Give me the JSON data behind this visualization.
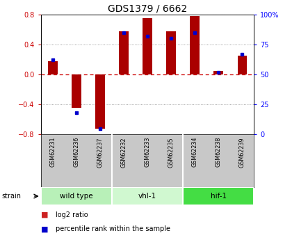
{
  "title": "GDS1379 / 6662",
  "samples": [
    "GSM62231",
    "GSM62236",
    "GSM62237",
    "GSM62232",
    "GSM62233",
    "GSM62235",
    "GSM62234",
    "GSM62238",
    "GSM62239"
  ],
  "log2_ratio": [
    0.18,
    -0.45,
    -0.72,
    0.57,
    0.75,
    0.57,
    0.78,
    0.05,
    0.25
  ],
  "percentile": [
    62,
    18,
    5,
    85,
    82,
    80,
    85,
    52,
    67
  ],
  "groups": [
    {
      "label": "wild type",
      "start": 0,
      "end": 3,
      "color": "#b8f0b8"
    },
    {
      "label": "vhl-1",
      "start": 3,
      "end": 6,
      "color": "#d0f8d0"
    },
    {
      "label": "hif-1",
      "start": 6,
      "end": 9,
      "color": "#44dd44"
    }
  ],
  "ylim": [
    -0.8,
    0.8
  ],
  "yticks_left": [
    -0.8,
    -0.4,
    0.0,
    0.4,
    0.8
  ],
  "yticks_right": [
    0,
    25,
    50,
    75,
    100
  ],
  "bar_color": "#aa0000",
  "dot_color": "#0000cc",
  "zero_line_color": "#cc0000",
  "grid_color": "#000000",
  "legend_bar_color": "#cc2222",
  "legend_dot_color": "#0000cc",
  "background_color": "#ffffff",
  "plot_bg_color": "#ffffff",
  "label_bg_color": "#c8c8c8",
  "bar_width": 0.4
}
